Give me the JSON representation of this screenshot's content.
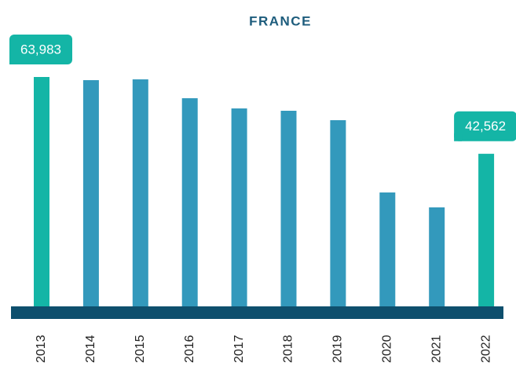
{
  "chart_data": {
    "type": "bar",
    "title": "FRANCE",
    "categories": [
      "2013",
      "2014",
      "2015",
      "2016",
      "2017",
      "2018",
      "2019",
      "2020",
      "2021",
      "2022"
    ],
    "values": [
      63983,
      63100,
      63320,
      58060,
      55210,
      54560,
      51930,
      31770,
      27610,
      42562
    ],
    "value_labels": [
      "63,983",
      null,
      null,
      null,
      null,
      null,
      null,
      null,
      null,
      "42,562"
    ],
    "colors": [
      "#14b5a6",
      "#3399bc",
      "#3399bc",
      "#3399bc",
      "#3399bc",
      "#3399bc",
      "#3399bc",
      "#3399bc",
      "#3399bc",
      "#14b5a6"
    ],
    "baseline_color": "#0e4f6d"
  }
}
